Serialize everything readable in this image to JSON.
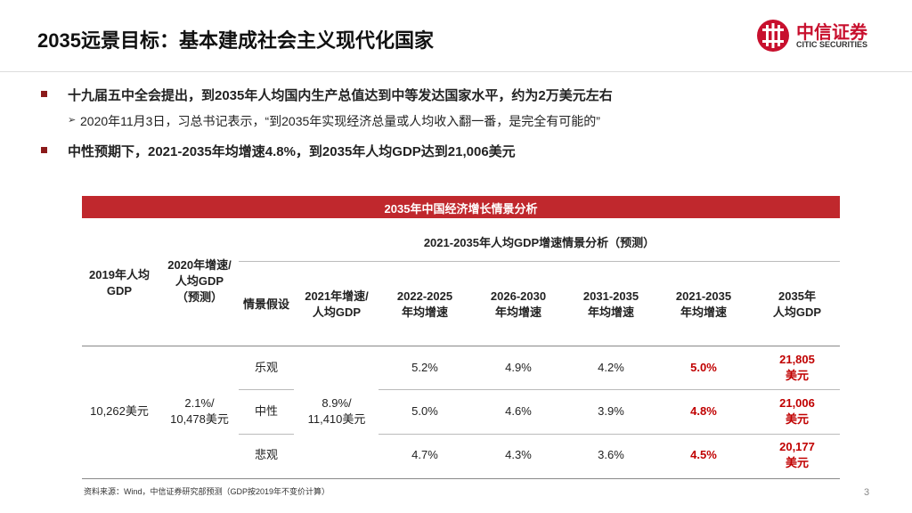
{
  "header": {
    "title": "2035远景目标：基本建成社会主义现代化国家",
    "logo": {
      "name": "中信证券",
      "subtitle": "CITIC SECURITIES"
    }
  },
  "bullets": [
    {
      "text": "十九届五中全会提出，到2035年人均国内生产总值达到中等发达国家水平，约为2万美元左右",
      "sub": [
        "2020年11月3日，习总书记表示，“到2035年实现经济总量或人均收入翻一番，是完全有可能的”"
      ]
    },
    {
      "text": "中性预期下，2021-2035年均增速4.8%，到2035年人均GDP达到21,006美元",
      "sub": []
    }
  ],
  "table": {
    "title": "2035年中国经济增长情景分析",
    "group_header": "2021-2035年人均GDP增速情景分析（预测）",
    "columns": [
      [
        "2019年人均",
        "GDP"
      ],
      [
        "2020年增速/",
        "人均GDP",
        "（预测）"
      ],
      [
        "情景假设"
      ],
      [
        "2021年增速/",
        "人均GDP"
      ],
      [
        "2022-2025",
        "年均增速"
      ],
      [
        "2026-2030",
        "年均增速"
      ],
      [
        "2031-2035",
        "年均增速"
      ],
      [
        "2021-2035",
        "年均增速"
      ],
      [
        "2035年",
        "人均GDP"
      ]
    ],
    "merged": {
      "gdp_2019": [
        "10,262美元"
      ],
      "growth_2020": [
        "2.1%/",
        "10,478美元"
      ],
      "growth_2021": [
        "8.9%/",
        "11,410美元"
      ]
    },
    "rows": [
      {
        "scenario": "乐观",
        "cells": [
          "5.2%",
          "4.9%",
          "4.2%",
          "5.0%"
        ],
        "gdp_2035": [
          "21,805",
          "美元"
        ]
      },
      {
        "scenario": "中性",
        "cells": [
          "5.0%",
          "4.6%",
          "3.9%",
          "4.8%"
        ],
        "gdp_2035": [
          "21,006",
          "美元"
        ]
      },
      {
        "scenario": "悲观",
        "cells": [
          "4.7%",
          "4.3%",
          "3.6%",
          "4.5%"
        ],
        "gdp_2035": [
          "20,177",
          "美元"
        ]
      }
    ]
  },
  "footer": {
    "source": "资料来源：Wind，中信证券研究部预测（GDP按2019年不变价计算）",
    "page": 3
  }
}
